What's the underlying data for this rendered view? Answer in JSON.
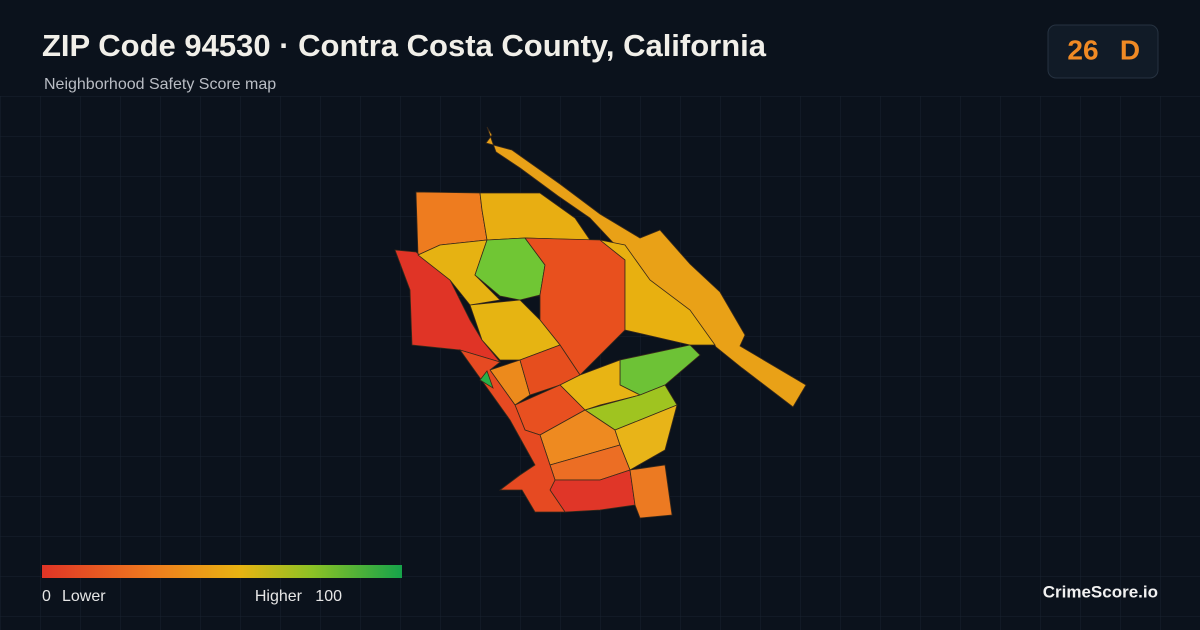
{
  "header": {
    "title": "ZIP Code 94530 · Contra Costa County, California",
    "subtitle": "Neighborhood Safety Score map"
  },
  "score": {
    "value": 26,
    "grade": "D"
  },
  "legend": {
    "min": 0,
    "min_label": "Lower",
    "max_label": "Higher",
    "max": 100
  },
  "brand": "CrimeScore.io"
}
